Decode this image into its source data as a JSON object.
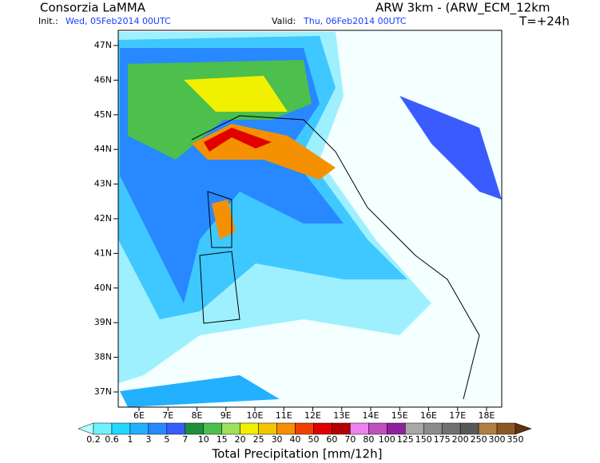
{
  "header": {
    "title": "Consorzia LaMMA",
    "model": "ARW 3km - (ARW_ECM_12km",
    "init_label": "Init.:",
    "init_time": "Wed, 05Feb2014 00UTC",
    "valid_label": "Valid:",
    "valid_time": "Thu, 06Feb2014 00UTC",
    "lead": "T=+24h"
  },
  "map": {
    "lat_labels": [
      "47N",
      "46N",
      "45N",
      "44N",
      "43N",
      "42N",
      "41N",
      "40N",
      "39N",
      "38N",
      "37N"
    ],
    "lon_labels": [
      "6E",
      "7E",
      "8E",
      "9E",
      "10E",
      "11E",
      "12E",
      "13E",
      "14E",
      "15E",
      "16E",
      "17E",
      "18E"
    ]
  },
  "colorbar": {
    "title": "Total Precipitation [mm/12h]",
    "labels": [
      "0.2",
      "0.6",
      "1",
      "3",
      "5",
      "7",
      "10",
      "15",
      "20",
      "25",
      "30",
      "40",
      "50",
      "60",
      "70",
      "80",
      "100",
      "125",
      "150",
      "175",
      "200",
      "250",
      "300",
      "350"
    ],
    "colors": [
      "#b4ffff",
      "#6ff4ff",
      "#22d8ff",
      "#22b0ff",
      "#2888ff",
      "#3a5cff",
      "#1e8f3c",
      "#4cbf4c",
      "#9ee05a",
      "#f0f000",
      "#f5c400",
      "#f59000",
      "#f04000",
      "#e00000",
      "#b40000",
      "#ee82ee",
      "#c050c0",
      "#9020a0",
      "#a8a8a8",
      "#8c8c8c",
      "#707070",
      "#585858",
      "#b08040",
      "#8a5a20",
      "#603010"
    ]
  }
}
